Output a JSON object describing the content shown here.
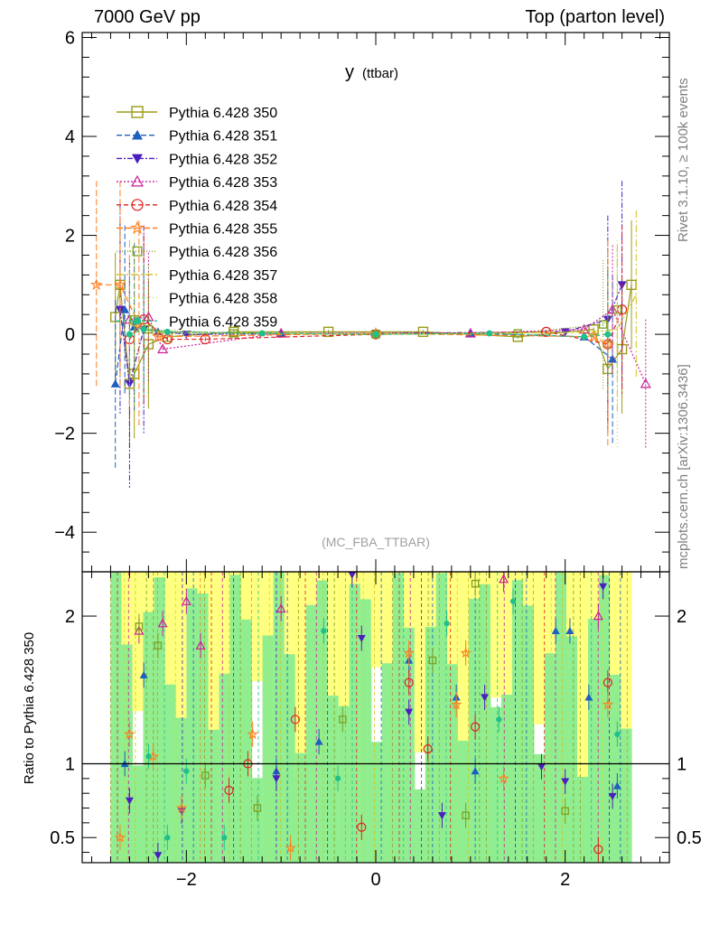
{
  "header": {
    "left": "7000 GeV pp",
    "right": "Top (parton level)"
  },
  "side_labels": {
    "rivet": "Rivet 3.1.10, ≥ 100k events",
    "mcplots": "mcplots.cern.ch [arXiv:1306.3436]"
  },
  "chart_data": [
    {
      "type": "scatter",
      "title": "y",
      "title_sub": "(ttbar)",
      "watermark": "(MC_FBA_TTBAR)",
      "xlim": [
        -3.1,
        3.1
      ],
      "ylim": [
        -4.8,
        6.1
      ],
      "yticks": [
        -4,
        -2,
        0,
        2,
        4,
        6
      ],
      "ytick_labels": [
        "−4",
        "−2",
        "0",
        "2",
        "4",
        "6"
      ],
      "legend_position": "top-left",
      "series": [
        {
          "name": "Pythia 6.428 350",
          "color": "#9a9a1a",
          "marker": "square-open",
          "dash": "",
          "points": [
            [
              -2.75,
              0.35
            ],
            [
              -2.7,
              1.0
            ],
            [
              -2.6,
              -1.0
            ],
            [
              -2.55,
              -0.8
            ],
            [
              -2.4,
              -0.2
            ],
            [
              -2.2,
              -0.05
            ],
            [
              -1.5,
              0.05
            ],
            [
              -0.5,
              0.05
            ],
            [
              0.5,
              0.05
            ],
            [
              1.5,
              -0.05
            ],
            [
              2.3,
              0.1
            ],
            [
              2.45,
              -0.7
            ],
            [
              2.6,
              -0.3
            ],
            [
              2.7,
              1.0
            ]
          ]
        },
        {
          "name": "Pythia 6.428 351",
          "color": "#1f5fbf",
          "marker": "triangle-up",
          "dash": "6,3",
          "points": [
            [
              -2.75,
              -1.0
            ],
            [
              -2.65,
              0.5
            ],
            [
              -2.55,
              0.15
            ],
            [
              -2.3,
              0.05
            ],
            [
              -1.0,
              0.02
            ],
            [
              0.0,
              0.0
            ],
            [
              1.0,
              0.02
            ],
            [
              2.2,
              -0.05
            ],
            [
              2.5,
              -0.5
            ]
          ]
        },
        {
          "name": "Pythia 6.428 352",
          "color": "#4a1fbf",
          "marker": "triangle-down",
          "dash": "6,2,2,2",
          "points": [
            [
              -2.7,
              0.5
            ],
            [
              -2.6,
              -1.0
            ],
            [
              -2.45,
              0.1
            ],
            [
              -2.0,
              0.0
            ],
            [
              0.0,
              0.02
            ],
            [
              2.0,
              0.05
            ],
            [
              2.45,
              0.3
            ],
            [
              2.6,
              1.0
            ]
          ]
        },
        {
          "name": "Pythia 6.428 353",
          "color": "#cc1f99",
          "marker": "triangle-open",
          "dash": "2,2",
          "points": [
            [
              -2.6,
              0.3
            ],
            [
              -2.4,
              0.35
            ],
            [
              -2.25,
              -0.3
            ],
            [
              -1.0,
              0.02
            ],
            [
              1.0,
              0.02
            ],
            [
              2.2,
              0.1
            ],
            [
              2.5,
              0.5
            ],
            [
              2.85,
              -1.0
            ]
          ]
        },
        {
          "name": "Pythia 6.428 354",
          "color": "#e02020",
          "marker": "circle-open",
          "dash": "5,3",
          "points": [
            [
              -2.6,
              -0.1
            ],
            [
              -2.45,
              0.3
            ],
            [
              -2.2,
              -0.1
            ],
            [
              -1.8,
              -0.1
            ],
            [
              0.0,
              0.0
            ],
            [
              1.8,
              0.05
            ],
            [
              2.45,
              -0.2
            ],
            [
              2.6,
              0.5
            ]
          ]
        },
        {
          "name": "Pythia 6.428 355",
          "color": "#ff7f1f",
          "marker": "star",
          "dash": "7,3",
          "points": [
            [
              -2.95,
              1.0
            ],
            [
              -2.7,
              1.0
            ],
            [
              -2.5,
              0.2
            ],
            [
              -2.3,
              -0.05
            ],
            [
              0.0,
              0.02
            ],
            [
              2.3,
              -0.05
            ],
            [
              2.45,
              -0.2
            ]
          ]
        },
        {
          "name": "Pythia 6.428 356",
          "color": "#7fa01f",
          "marker": "square-open-small",
          "dash": "1,2",
          "points": [
            [
              -2.55,
              0.3
            ],
            [
              -2.4,
              0.1
            ],
            [
              -1.5,
              0.02
            ],
            [
              0.0,
              0.0
            ],
            [
              1.5,
              0.02
            ],
            [
              2.4,
              0.2
            ],
            [
              2.55,
              0.5
            ]
          ]
        },
        {
          "name": "Pythia 6.428 357",
          "color": "#d4c21f",
          "marker": "none",
          "dash": "8,3,2,3",
          "points": [
            [
              -2.6,
              0.2
            ],
            [
              -2.3,
              0.05
            ],
            [
              0.0,
              0.0
            ],
            [
              2.3,
              0.05
            ],
            [
              2.55,
              0.1
            ],
            [
              2.75,
              0.8
            ]
          ]
        },
        {
          "name": "Pythia 6.428 358",
          "color": "#c8e01f",
          "marker": "none",
          "dash": "1,3",
          "points": [
            [
              -2.55,
              0.1
            ],
            [
              -2.2,
              0.02
            ],
            [
              0.0,
              0.0
            ],
            [
              2.2,
              0.02
            ],
            [
              2.55,
              -0.2
            ]
          ]
        },
        {
          "name": "Pythia 6.428 359",
          "color": "#20c08a",
          "marker": "dot",
          "dash": "4,3",
          "points": [
            [
              -2.6,
              0.0
            ],
            [
              -2.45,
              0.1
            ],
            [
              -2.2,
              0.05
            ],
            [
              -1.2,
              0.02
            ],
            [
              0.0,
              0.0
            ],
            [
              1.2,
              0.02
            ],
            [
              2.2,
              -0.05
            ],
            [
              2.45,
              0.0
            ]
          ]
        }
      ]
    },
    {
      "type": "scatter",
      "ylabel": "Ratio to Pythia 6.428 350",
      "xlim": [
        -3.1,
        3.1
      ],
      "ylim": [
        0.33,
        2.3
      ],
      "yticks": [
        0.5,
        1,
        2
      ],
      "ytick_labels": [
        "0.5",
        "1",
        "2"
      ],
      "xticks": [
        -2,
        0,
        2
      ],
      "xtick_labels": [
        "−2",
        "0",
        "2"
      ],
      "reference_line": 1.0,
      "band_range": [
        -2.8,
        2.7
      ],
      "band_colors": [
        "#ffff80",
        "#90ee90"
      ],
      "ratio_points": [
        {
          "series": "Pythia 6.428 351",
          "points": [
            [
              -2.65,
              1.0
            ],
            [
              -2.45,
              1.6
            ],
            [
              -1.05,
              0.95
            ],
            [
              -0.6,
              1.15
            ],
            [
              0.35,
              1.7
            ],
            [
              0.85,
              1.45
            ],
            [
              1.05,
              0.95
            ],
            [
              1.9,
              1.9
            ],
            [
              2.05,
              1.9
            ],
            [
              2.25,
              1.45
            ],
            [
              2.55,
              0.85
            ]
          ]
        },
        {
          "series": "Pythia 6.428 352",
          "points": [
            [
              -2.6,
              0.75
            ],
            [
              -2.3,
              0.38
            ],
            [
              -2.05,
              0.68
            ],
            [
              -1.05,
              0.9
            ],
            [
              -0.25,
              2.28
            ],
            [
              -0.15,
              1.85
            ],
            [
              0.35,
              1.35
            ],
            [
              0.7,
              0.65
            ],
            [
              1.15,
              1.45
            ],
            [
              1.75,
              0.98
            ],
            [
              2.0,
              0.88
            ],
            [
              2.4,
              2.2
            ],
            [
              2.5,
              0.78
            ]
          ]
        },
        {
          "series": "Pythia 6.428 353",
          "points": [
            [
              -2.5,
              1.9
            ],
            [
              -2.25,
              1.95
            ],
            [
              -2.0,
              2.1
            ],
            [
              -1.85,
              1.8
            ],
            [
              -1.0,
              2.05
            ],
            [
              1.35,
              2.25
            ],
            [
              2.35,
              2.0
            ]
          ]
        },
        {
          "series": "Pythia 6.428 354",
          "points": [
            [
              -1.55,
              0.82
            ],
            [
              -1.35,
              1.0
            ],
            [
              -0.85,
              1.3
            ],
            [
              -0.15,
              0.57
            ],
            [
              0.35,
              1.55
            ],
            [
              0.55,
              1.1
            ],
            [
              1.05,
              1.25
            ],
            [
              2.35,
              0.42
            ],
            [
              2.45,
              1.55
            ]
          ]
        },
        {
          "series": "Pythia 6.428 355",
          "points": [
            [
              -2.7,
              0.5
            ],
            [
              -2.6,
              1.2
            ],
            [
              -2.35,
              1.05
            ],
            [
              -2.05,
              0.7
            ],
            [
              -1.3,
              1.2
            ],
            [
              -0.9,
              0.43
            ],
            [
              0.35,
              1.75
            ],
            [
              0.85,
              1.4
            ],
            [
              0.95,
              1.75
            ],
            [
              1.35,
              0.9
            ],
            [
              2.45,
              1.4
            ]
          ]
        },
        {
          "series": "Pythia 6.428 356",
          "points": [
            [
              -2.5,
              1.93
            ],
            [
              -2.3,
              1.8
            ],
            [
              -1.8,
              0.92
            ],
            [
              -1.25,
              0.7
            ],
            [
              -0.35,
              1.3
            ],
            [
              0.6,
              1.7
            ],
            [
              0.95,
              0.65
            ],
            [
              1.05,
              2.22
            ],
            [
              2.0,
              0.68
            ]
          ]
        },
        {
          "series": "Pythia 6.428 359",
          "points": [
            [
              -2.4,
              1.05
            ],
            [
              -2.2,
              0.5
            ],
            [
              -2.0,
              0.95
            ],
            [
              -1.6,
              0.5
            ],
            [
              -0.55,
              1.9
            ],
            [
              -0.4,
              0.9
            ],
            [
              0.75,
              1.95
            ],
            [
              1.3,
              1.3
            ],
            [
              1.45,
              2.1
            ],
            [
              2.55,
              1.2
            ]
          ]
        }
      ]
    }
  ]
}
